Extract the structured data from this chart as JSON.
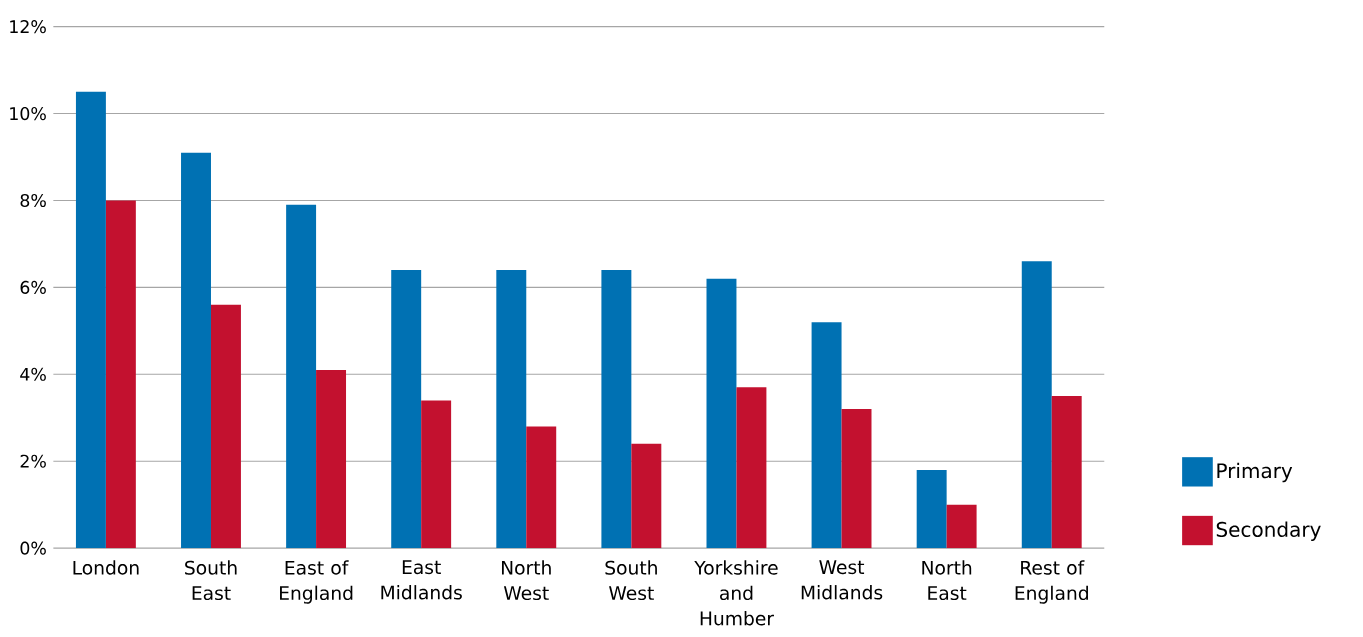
{
  "chart_data": {
    "type": "bar",
    "categories": [
      "London",
      "South East",
      "East of England",
      "East Midlands",
      "North West",
      "South West",
      "Yorkshire and Humber",
      "West Midlands",
      "North East",
      "Rest of England"
    ],
    "series": [
      {
        "name": "Primary",
        "color": "#0071b3",
        "values": [
          10.5,
          9.1,
          7.9,
          6.4,
          6.4,
          6.4,
          6.2,
          5.2,
          1.8,
          6.6
        ]
      },
      {
        "name": "Secondary",
        "color": "#c3112f",
        "values": [
          8.0,
          5.6,
          4.1,
          3.4,
          2.8,
          2.4,
          3.7,
          3.2,
          1.0,
          3.5
        ]
      }
    ],
    "ylim": [
      0,
      12
    ],
    "yticks": [
      {
        "value": 0,
        "label": "0%"
      },
      {
        "value": 2,
        "label": "2%"
      },
      {
        "value": 4,
        "label": "4%"
      },
      {
        "value": 6,
        "label": "6%"
      },
      {
        "value": 8,
        "label": "8%"
      },
      {
        "value": 10,
        "label": "10%"
      },
      {
        "value": 12,
        "label": "12%"
      }
    ],
    "grid": "y",
    "legend": "right"
  }
}
